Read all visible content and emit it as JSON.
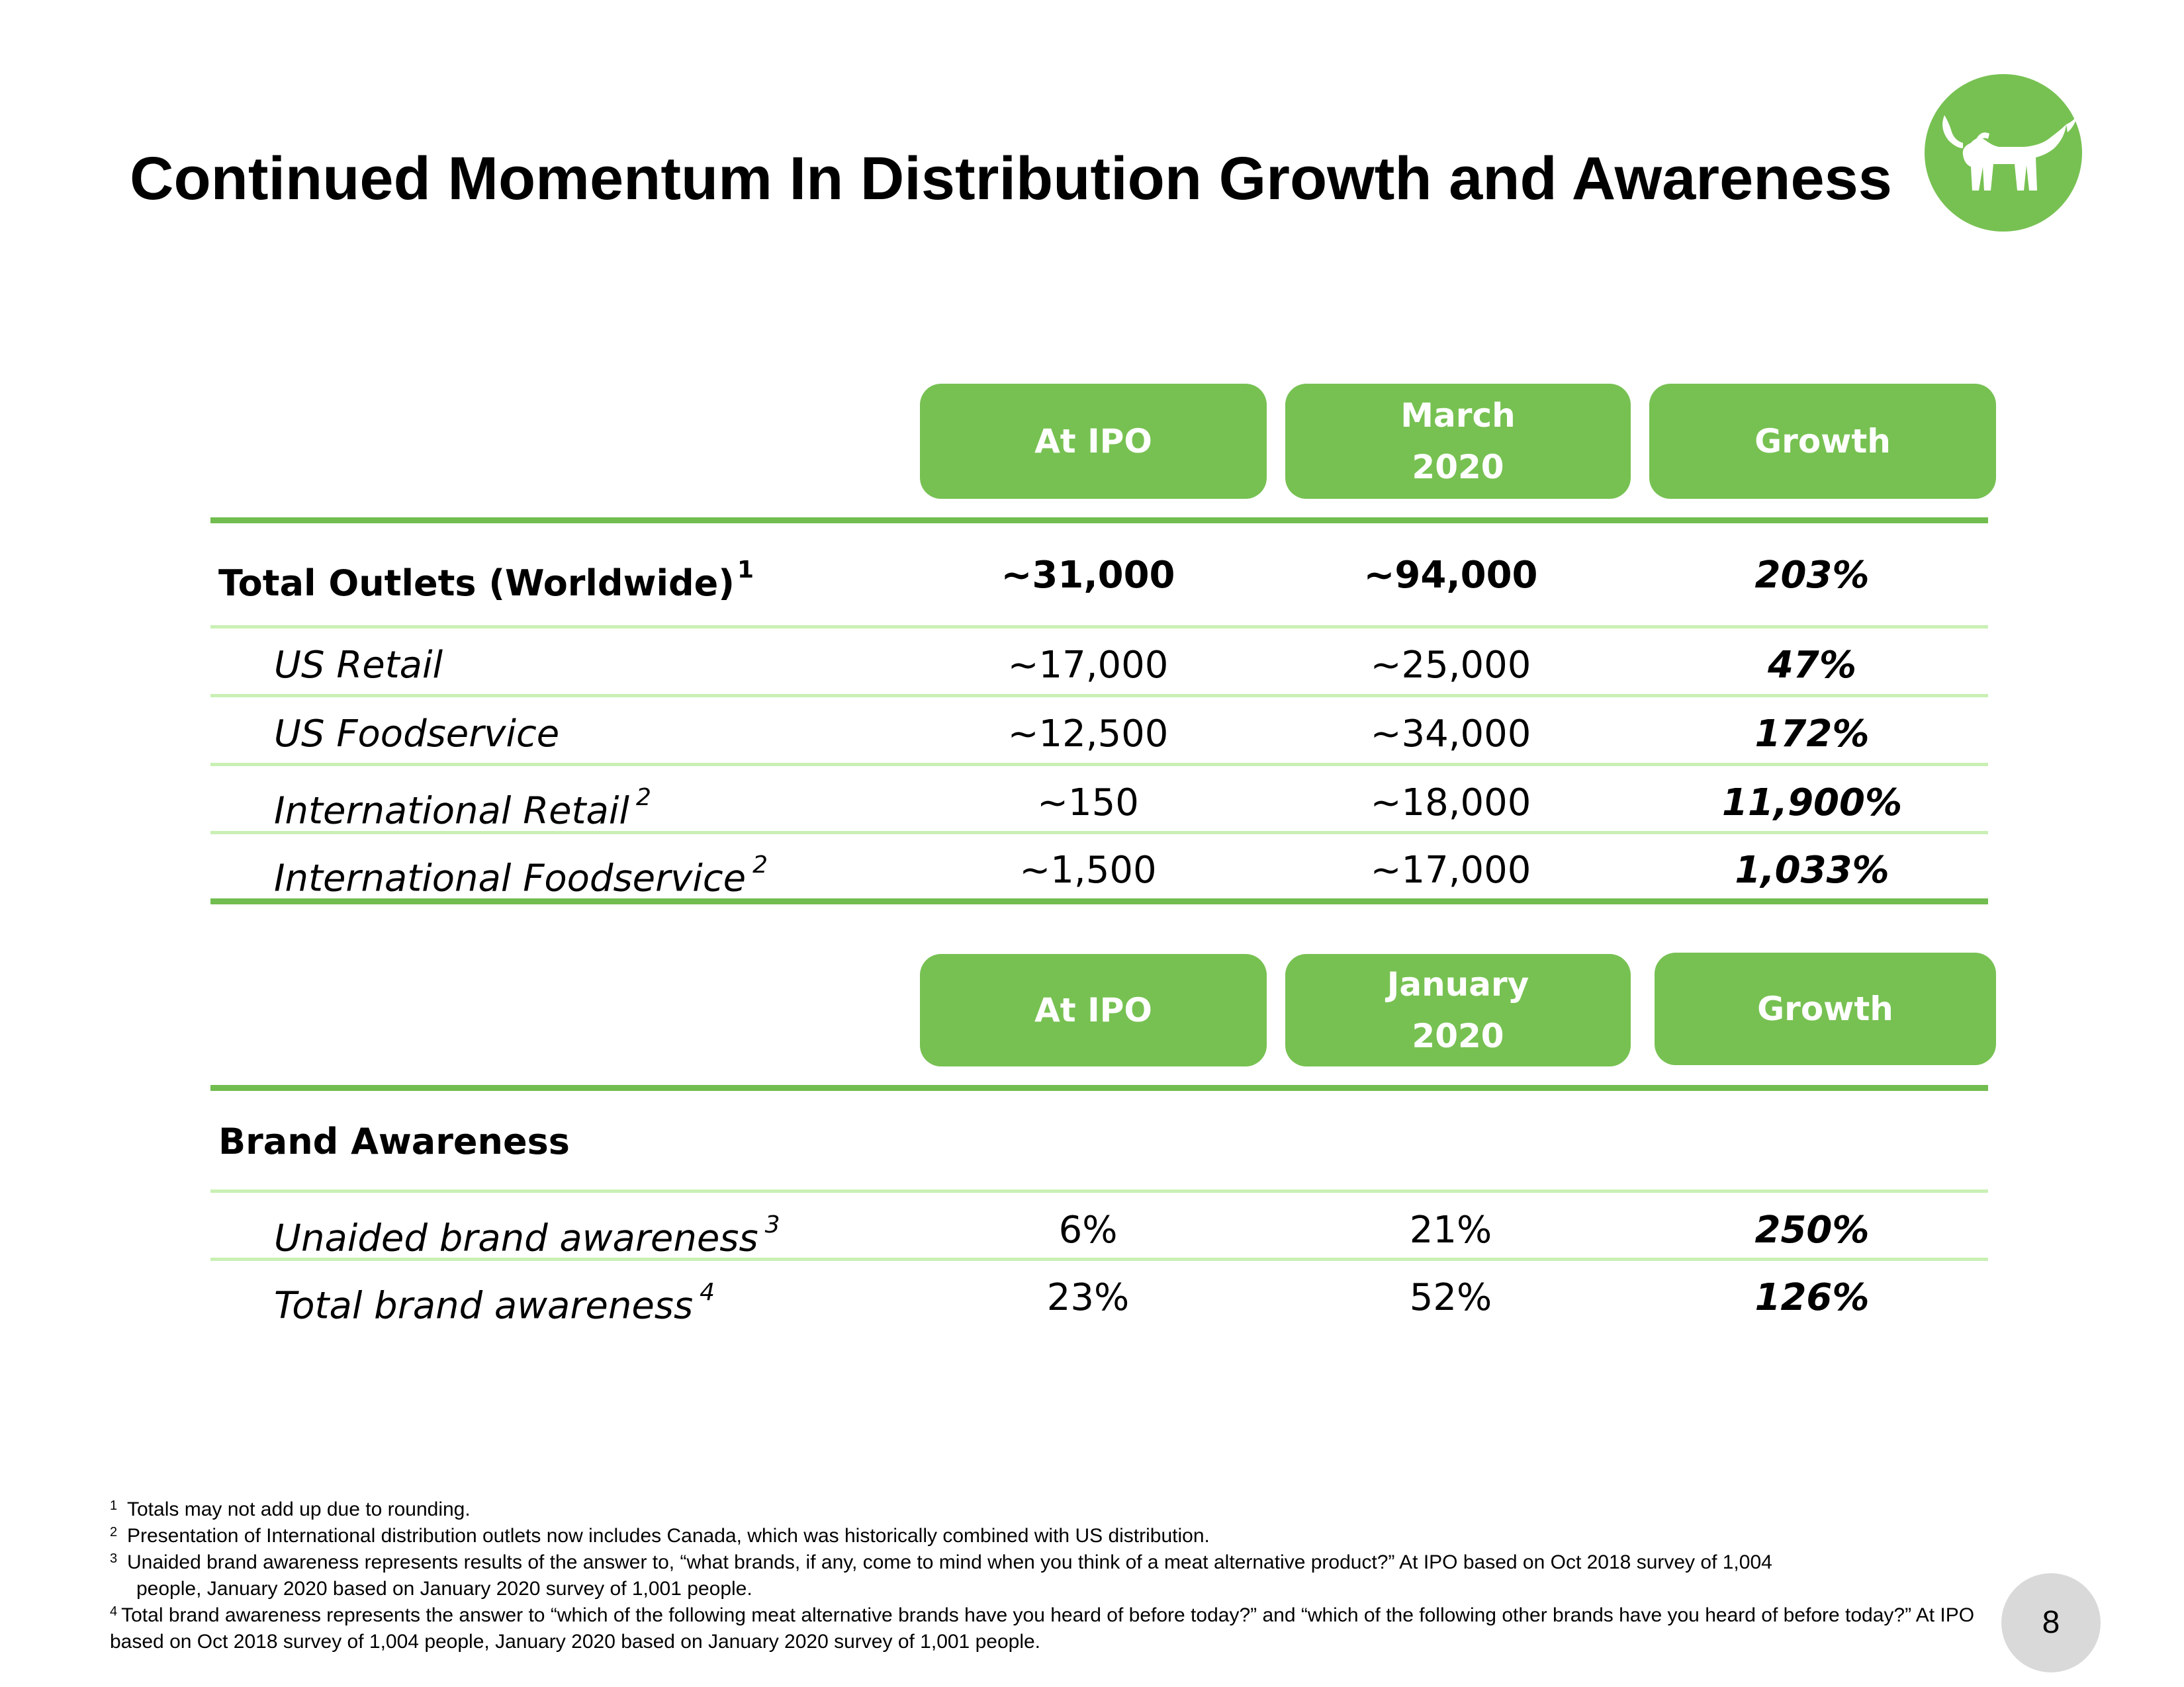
{
  "title": "Continued Momentum In Distribution Growth and Awareness",
  "logo": {
    "icon": "bull-logo-icon",
    "color": "#77c152"
  },
  "distribution": {
    "headers": [
      {
        "lines": [
          "At IPO"
        ]
      },
      {
        "lines": [
          "March",
          "2020"
        ]
      },
      {
        "lines": [
          "Growth"
        ]
      }
    ],
    "rows": [
      {
        "label": "Total Outlets (Worldwide)",
        "note": "1",
        "at_ipo": "~31,000",
        "current": "~94,000",
        "growth": "203%"
      },
      {
        "label": "US Retail",
        "note": "",
        "at_ipo": "~17,000",
        "current": "~25,000",
        "growth": "47%"
      },
      {
        "label": "US Foodservice",
        "note": "",
        "at_ipo": "~12,500",
        "current": "~34,000",
        "growth": "172%"
      },
      {
        "label": "International Retail",
        "note": "2",
        "at_ipo": "~150",
        "current": "~18,000",
        "growth": "11,900%"
      },
      {
        "label": "International Foodservice",
        "note": "2",
        "at_ipo": "~1,500",
        "current": "~17,000",
        "growth": "1,033%"
      }
    ]
  },
  "awareness": {
    "headers": [
      {
        "lines": [
          "At IPO"
        ]
      },
      {
        "lines": [
          "January",
          "2020"
        ]
      },
      {
        "lines": [
          "Growth"
        ]
      }
    ],
    "section_label": "Brand Awareness",
    "rows": [
      {
        "label": "Unaided brand awareness",
        "note": "3",
        "at_ipo": "6%",
        "current": "21%",
        "growth": "250%"
      },
      {
        "label": "Total brand awareness",
        "note": "4",
        "at_ipo": "23%",
        "current": "52%",
        "growth": "126%"
      }
    ]
  },
  "footnotes": [
    {
      "num": "1",
      "text": " Totals may not add up due to rounding."
    },
    {
      "num": "2",
      "text": "Presentation of International distribution outlets now includes Canada, which was historically combined with US distribution."
    },
    {
      "num": "3",
      "text": "Unaided brand awareness represents results of the answer to, “what brands, if any, come to mind when you think of a meat alternative product?” At IPO based on Oct 2018 survey of 1,004",
      "cont": "people, January 2020 based on January 2020 survey of 1,001 people."
    },
    {
      "num": "4",
      "text": "Total brand awareness represents the answer to “which of the following meat alternative brands have you heard of before today?” and “which of the following other brands have you heard of before today?” At IPO based on Oct 2018 survey of 1,004 people, January 2020 based on January 2020 survey of 1,001 people."
    }
  ],
  "page_number": "8"
}
